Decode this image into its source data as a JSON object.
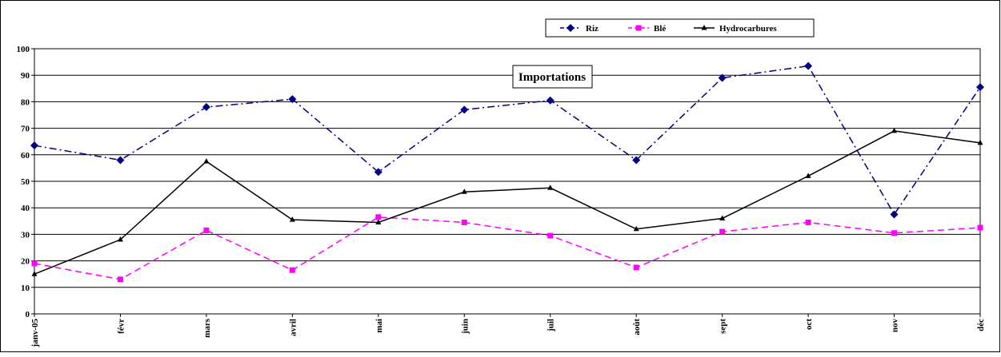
{
  "chart_data": {
    "type": "line",
    "title": "Importations",
    "categories": [
      "janv-05",
      "févr",
      "mars",
      "avril",
      "mai",
      "juin",
      "juil",
      "août",
      "sept",
      "oct",
      "nov",
      "déc"
    ],
    "ylim": [
      0,
      100
    ],
    "yticks": [
      0,
      10,
      20,
      30,
      40,
      50,
      60,
      70,
      80,
      90,
      100
    ],
    "grid": true,
    "legend_position": "top-right",
    "series": [
      {
        "name": "Riz",
        "color": "#000080",
        "marker": "diamond",
        "line_style": "dash-dot",
        "values": [
          63.5,
          58,
          78,
          81,
          53.5,
          77,
          80.5,
          58,
          89,
          93.5,
          37.5,
          85.5
        ]
      },
      {
        "name": "Blé",
        "color": "#ff00ff",
        "marker": "square",
        "line_style": "dashed",
        "values": [
          19,
          13,
          31.5,
          16.5,
          36.5,
          34.5,
          29.5,
          17.5,
          31,
          34.5,
          30.5,
          32.5
        ]
      },
      {
        "name": "Hydrocarbures",
        "color": "#000000",
        "marker": "triangle",
        "line_style": "solid",
        "values": [
          15,
          28,
          57.5,
          35.5,
          34.5,
          46,
          47.5,
          32,
          36,
          52,
          69,
          64.5
        ]
      }
    ]
  }
}
